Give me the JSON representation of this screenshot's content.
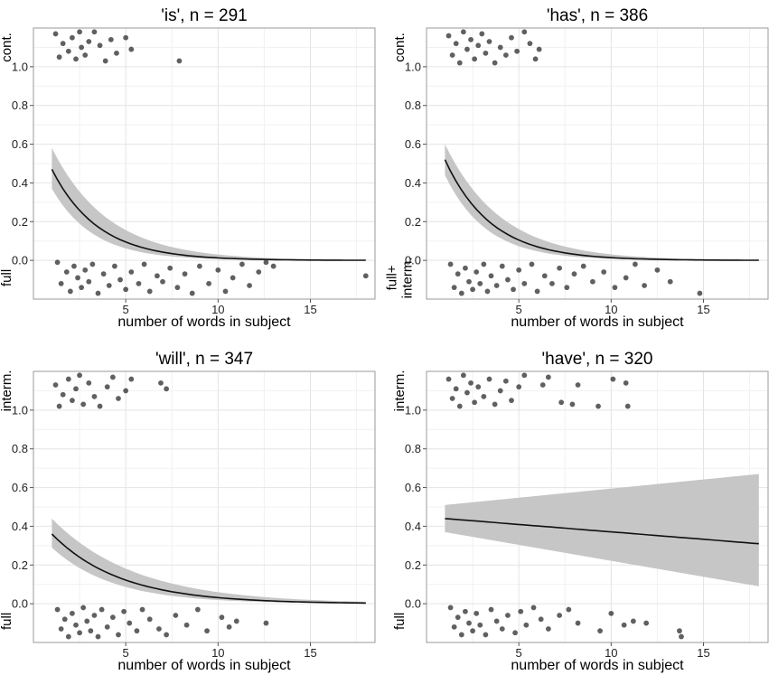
{
  "chart_data": [
    {
      "type": "scatter",
      "title": "'is', n = 291",
      "xlabel": "number of words in subject",
      "upper_label": [
        "cont."
      ],
      "lower_label": [
        "full"
      ],
      "xlim": [
        0,
        18.5
      ],
      "ylim": [
        -0.2,
        1.2
      ],
      "x_ticks": [
        5,
        10,
        15
      ],
      "y_ticks": [
        0.0,
        0.2,
        0.4,
        0.6,
        0.8,
        1.0
      ],
      "y_tick_labels": [
        "0.0",
        "0.2",
        "0.4",
        "0.6",
        "0.8",
        "1.0"
      ],
      "fit": {
        "x_start": 1,
        "x_end": 18,
        "start": 0.47,
        "rate": 0.4,
        "band_upper_start": 0.58,
        "band_lower_start": 0.37
      },
      "upper_points": [
        [
          1.2,
          1.17
        ],
        [
          1.4,
          1.05
        ],
        [
          1.6,
          1.12
        ],
        [
          1.9,
          1.08
        ],
        [
          2.1,
          1.15
        ],
        [
          2.3,
          1.04
        ],
        [
          2.5,
          1.18
        ],
        [
          2.6,
          1.1
        ],
        [
          2.8,
          1.06
        ],
        [
          3.0,
          1.13
        ],
        [
          3.3,
          1.18
        ],
        [
          3.6,
          1.11
        ],
        [
          3.9,
          1.03
        ],
        [
          4.2,
          1.14
        ],
        [
          4.5,
          1.07
        ],
        [
          5.0,
          1.15
        ],
        [
          5.3,
          1.09
        ],
        [
          7.9,
          1.03
        ]
      ],
      "lower_points": [
        [
          1.3,
          -0.01
        ],
        [
          1.5,
          -0.12
        ],
        [
          1.8,
          -0.06
        ],
        [
          2.0,
          -0.16
        ],
        [
          2.2,
          -0.03
        ],
        [
          2.4,
          -0.09
        ],
        [
          2.6,
          -0.14
        ],
        [
          2.8,
          -0.05
        ],
        [
          3.0,
          -0.11
        ],
        [
          3.2,
          -0.02
        ],
        [
          3.5,
          -0.17
        ],
        [
          3.8,
          -0.07
        ],
        [
          4.1,
          -0.13
        ],
        [
          4.4,
          -0.03
        ],
        [
          4.7,
          -0.1
        ],
        [
          5.0,
          -0.15
        ],
        [
          5.3,
          -0.06
        ],
        [
          5.7,
          -0.12
        ],
        [
          6.0,
          -0.02
        ],
        [
          6.3,
          -0.16
        ],
        [
          6.7,
          -0.08
        ],
        [
          7.0,
          -0.11
        ],
        [
          7.4,
          -0.04
        ],
        [
          7.8,
          -0.14
        ],
        [
          8.2,
          -0.07
        ],
        [
          8.6,
          -0.17
        ],
        [
          9.0,
          -0.03
        ],
        [
          9.5,
          -0.12
        ],
        [
          10.0,
          -0.05
        ],
        [
          10.4,
          -0.16
        ],
        [
          10.8,
          -0.09
        ],
        [
          11.3,
          -0.02
        ],
        [
          11.7,
          -0.13
        ],
        [
          12.2,
          -0.06
        ],
        [
          12.6,
          -0.01
        ],
        [
          13.0,
          -0.03
        ],
        [
          18.0,
          -0.08
        ]
      ]
    },
    {
      "type": "scatter",
      "title": "'has', n = 386",
      "xlabel": "number of words in subject",
      "upper_label": [
        "cont."
      ],
      "lower_label": [
        "full+",
        "interm."
      ],
      "xlim": [
        0,
        18.5
      ],
      "ylim": [
        -0.2,
        1.2
      ],
      "x_ticks": [
        5,
        10,
        15
      ],
      "y_ticks": [
        0.0,
        0.2,
        0.4,
        0.6,
        0.8,
        1.0
      ],
      "y_tick_labels": [
        "0.0",
        "0.2",
        "0.4",
        "0.6",
        "0.8",
        "1.0"
      ],
      "fit": {
        "x_start": 1,
        "x_end": 18,
        "start": 0.52,
        "rate": 0.4,
        "band_upper_start": 0.6,
        "band_lower_start": 0.44
      },
      "upper_points": [
        [
          1.2,
          1.16
        ],
        [
          1.4,
          1.06
        ],
        [
          1.6,
          1.12
        ],
        [
          1.8,
          1.02
        ],
        [
          2.0,
          1.18
        ],
        [
          2.2,
          1.09
        ],
        [
          2.4,
          1.14
        ],
        [
          2.6,
          1.04
        ],
        [
          2.8,
          1.11
        ],
        [
          3.0,
          1.17
        ],
        [
          3.2,
          1.07
        ],
        [
          3.4,
          1.13
        ],
        [
          3.7,
          1.02
        ],
        [
          4.0,
          1.1
        ],
        [
          4.3,
          1.06
        ],
        [
          4.6,
          1.15
        ],
        [
          4.9,
          1.08
        ],
        [
          5.3,
          1.18
        ],
        [
          5.6,
          1.12
        ],
        [
          5.9,
          1.04
        ],
        [
          6.1,
          1.09
        ]
      ],
      "lower_points": [
        [
          1.3,
          -0.02
        ],
        [
          1.5,
          -0.14
        ],
        [
          1.7,
          -0.07
        ],
        [
          1.9,
          -0.17
        ],
        [
          2.1,
          -0.04
        ],
        [
          2.3,
          -0.11
        ],
        [
          2.5,
          -0.15
        ],
        [
          2.7,
          -0.06
        ],
        [
          2.9,
          -0.12
        ],
        [
          3.1,
          -0.02
        ],
        [
          3.3,
          -0.16
        ],
        [
          3.5,
          -0.08
        ],
        [
          3.8,
          -0.13
        ],
        [
          4.1,
          -0.03
        ],
        [
          4.4,
          -0.1
        ],
        [
          4.7,
          -0.15
        ],
        [
          5.0,
          -0.05
        ],
        [
          5.3,
          -0.12
        ],
        [
          5.7,
          -0.02
        ],
        [
          6.0,
          -0.16
        ],
        [
          6.4,
          -0.08
        ],
        [
          6.8,
          -0.12
        ],
        [
          7.2,
          -0.04
        ],
        [
          7.6,
          -0.14
        ],
        [
          8.0,
          -0.07
        ],
        [
          8.5,
          -0.03
        ],
        [
          9.0,
          -0.11
        ],
        [
          9.6,
          -0.06
        ],
        [
          10.2,
          -0.14
        ],
        [
          10.8,
          -0.09
        ],
        [
          11.3,
          -0.02
        ],
        [
          11.8,
          -0.13
        ],
        [
          12.5,
          -0.05
        ],
        [
          13.2,
          -0.11
        ],
        [
          14.8,
          -0.17
        ]
      ]
    },
    {
      "type": "scatter",
      "title": "'will', n = 347",
      "xlabel": "number of words in subject",
      "upper_label": [
        "interm."
      ],
      "lower_label": [
        "full"
      ],
      "xlim": [
        0,
        18.5
      ],
      "ylim": [
        -0.2,
        1.2
      ],
      "x_ticks": [
        5,
        10,
        15
      ],
      "y_ticks": [
        0.0,
        0.2,
        0.4,
        0.6,
        0.8,
        1.0
      ],
      "y_tick_labels": [
        "0.0",
        "0.2",
        "0.4",
        "0.6",
        "0.8",
        "1.0"
      ],
      "fit": {
        "x_start": 1,
        "x_end": 18,
        "start": 0.36,
        "rate": 0.27,
        "band_upper_start": 0.44,
        "band_lower_start": 0.29
      },
      "upper_points": [
        [
          1.2,
          1.13
        ],
        [
          1.4,
          1.02
        ],
        [
          1.6,
          1.08
        ],
        [
          1.9,
          1.16
        ],
        [
          2.1,
          1.05
        ],
        [
          2.3,
          1.11
        ],
        [
          2.5,
          1.18
        ],
        [
          2.7,
          1.03
        ],
        [
          3.0,
          1.14
        ],
        [
          3.3,
          1.07
        ],
        [
          3.6,
          1.02
        ],
        [
          4.0,
          1.12
        ],
        [
          4.3,
          1.17
        ],
        [
          4.6,
          1.06
        ],
        [
          5.0,
          1.1
        ],
        [
          5.3,
          1.16
        ],
        [
          6.9,
          1.14
        ],
        [
          7.2,
          1.11
        ]
      ],
      "lower_points": [
        [
          1.3,
          -0.03
        ],
        [
          1.5,
          -0.13
        ],
        [
          1.7,
          -0.08
        ],
        [
          1.9,
          -0.17
        ],
        [
          2.1,
          -0.05
        ],
        [
          2.3,
          -0.11
        ],
        [
          2.5,
          -0.15
        ],
        [
          2.7,
          -0.02
        ],
        [
          2.9,
          -0.09
        ],
        [
          3.1,
          -0.14
        ],
        [
          3.3,
          -0.06
        ],
        [
          3.5,
          -0.17
        ],
        [
          3.7,
          -0.03
        ],
        [
          4.0,
          -0.12
        ],
        [
          4.3,
          -0.07
        ],
        [
          4.6,
          -0.16
        ],
        [
          4.9,
          -0.04
        ],
        [
          5.2,
          -0.1
        ],
        [
          5.6,
          -0.14
        ],
        [
          5.9,
          -0.03
        ],
        [
          6.3,
          -0.08
        ],
        [
          6.8,
          -0.13
        ],
        [
          7.2,
          -0.16
        ],
        [
          7.7,
          -0.06
        ],
        [
          8.3,
          -0.11
        ],
        [
          8.9,
          -0.03
        ],
        [
          9.4,
          -0.14
        ],
        [
          10.2,
          -0.07
        ],
        [
          10.6,
          -0.12
        ],
        [
          11.0,
          -0.09
        ],
        [
          12.6,
          -0.1
        ]
      ]
    },
    {
      "type": "scatter",
      "title": "'have', n = 320",
      "xlabel": "number of words in subject",
      "upper_label": [
        "interm."
      ],
      "lower_label": [
        "full"
      ],
      "xlim": [
        0,
        18.5
      ],
      "ylim": [
        -0.2,
        1.2
      ],
      "x_ticks": [
        5,
        10,
        15
      ],
      "y_ticks": [
        0.0,
        0.2,
        0.4,
        0.6,
        0.8,
        1.0
      ],
      "y_tick_labels": [
        "0.0",
        "0.2",
        "0.4",
        "0.6",
        "0.8",
        "1.0"
      ],
      "fit": {
        "linear": true,
        "x_start": 1,
        "x_end": 18,
        "start": 0.44,
        "end": 0.31,
        "band_upper_start": 0.51,
        "band_lower_start": 0.37,
        "band_upper_end": 0.67,
        "band_lower_end": 0.09
      },
      "upper_points": [
        [
          1.2,
          1.16
        ],
        [
          1.4,
          1.06
        ],
        [
          1.6,
          1.11
        ],
        [
          1.8,
          1.02
        ],
        [
          2.0,
          1.18
        ],
        [
          2.2,
          1.09
        ],
        [
          2.4,
          1.14
        ],
        [
          2.6,
          1.04
        ],
        [
          2.8,
          1.12
        ],
        [
          3.1,
          1.07
        ],
        [
          3.4,
          1.16
        ],
        [
          3.7,
          1.03
        ],
        [
          4.0,
          1.1
        ],
        [
          4.3,
          1.15
        ],
        [
          4.6,
          1.05
        ],
        [
          5.0,
          1.12
        ],
        [
          5.3,
          1.18
        ],
        [
          6.3,
          1.13
        ],
        [
          6.6,
          1.17
        ],
        [
          7.3,
          1.04
        ],
        [
          7.9,
          1.03
        ],
        [
          8.2,
          1.13
        ],
        [
          9.3,
          1.02
        ],
        [
          10.1,
          1.16
        ],
        [
          10.8,
          1.14
        ],
        [
          10.9,
          1.02
        ]
      ],
      "lower_points": [
        [
          1.3,
          -0.02
        ],
        [
          1.5,
          -0.12
        ],
        [
          1.7,
          -0.07
        ],
        [
          1.9,
          -0.16
        ],
        [
          2.1,
          -0.04
        ],
        [
          2.3,
          -0.1
        ],
        [
          2.5,
          -0.14
        ],
        [
          2.7,
          -0.05
        ],
        [
          2.9,
          -0.11
        ],
        [
          3.2,
          -0.16
        ],
        [
          3.5,
          -0.03
        ],
        [
          3.8,
          -0.09
        ],
        [
          4.1,
          -0.13
        ],
        [
          4.4,
          -0.06
        ],
        [
          4.8,
          -0.15
        ],
        [
          5.1,
          -0.04
        ],
        [
          5.4,
          -0.11
        ],
        [
          5.8,
          -0.02
        ],
        [
          6.2,
          -0.08
        ],
        [
          6.6,
          -0.13
        ],
        [
          7.2,
          -0.06
        ],
        [
          7.7,
          -0.03
        ],
        [
          8.2,
          -0.1
        ],
        [
          9.4,
          -0.14
        ],
        [
          10.0,
          -0.05
        ],
        [
          10.7,
          -0.11
        ],
        [
          11.2,
          -0.09
        ],
        [
          11.9,
          -0.1
        ],
        [
          13.7,
          -0.14
        ],
        [
          13.8,
          -0.17
        ]
      ]
    }
  ]
}
